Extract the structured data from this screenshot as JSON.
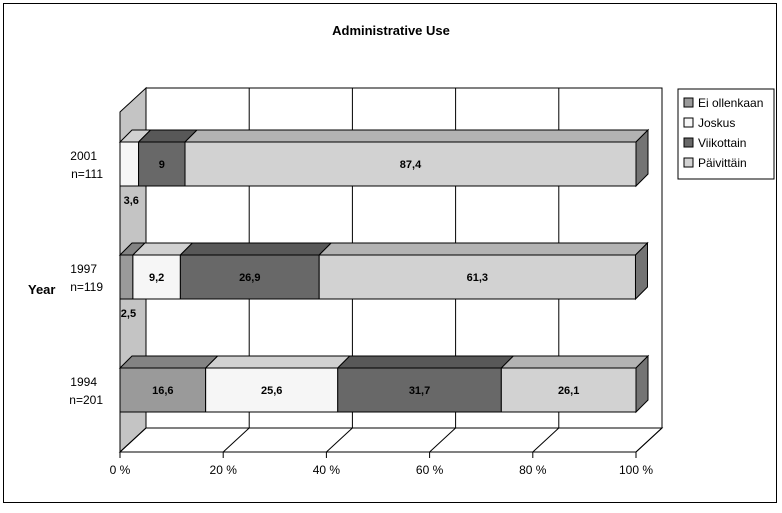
{
  "chart_data": {
    "type": "bar",
    "orientation": "horizontal",
    "stacked": "percent",
    "title": "Administrative Use",
    "ylabel": "Year",
    "xlabel": "",
    "xlim": [
      0,
      100
    ],
    "x_ticks": [
      "0 %",
      "20 %",
      "40 %",
      "60 %",
      "80 %",
      "100 %"
    ],
    "categories": [
      {
        "year": "2001",
        "n": "n=111"
      },
      {
        "year": "1997",
        "n": "n=119"
      },
      {
        "year": "1994",
        "n": "n=201"
      }
    ],
    "series": [
      {
        "name": "Ei ollenkaan",
        "values": [
          0,
          2.5,
          16.6
        ],
        "labels": [
          "",
          "2,5",
          "16,6"
        ],
        "color": "#9a9a9a"
      },
      {
        "name": "Joskus",
        "values": [
          3.6,
          9.2,
          25.6
        ],
        "labels": [
          "3,6",
          "9,2",
          "25,6"
        ],
        "color": "#f6f6f6"
      },
      {
        "name": "Viikottain",
        "values": [
          9,
          26.9,
          31.7
        ],
        "labels": [
          "9",
          "26,9",
          "31,7"
        ],
        "color": "#686868"
      },
      {
        "name": "Päivittäin",
        "values": [
          87.4,
          61.3,
          26.1
        ],
        "labels": [
          "87,4",
          "61,3",
          "26,1"
        ],
        "color": "#d2d2d2"
      }
    ],
    "grid": true,
    "legend_position": "right",
    "three_d": true
  }
}
